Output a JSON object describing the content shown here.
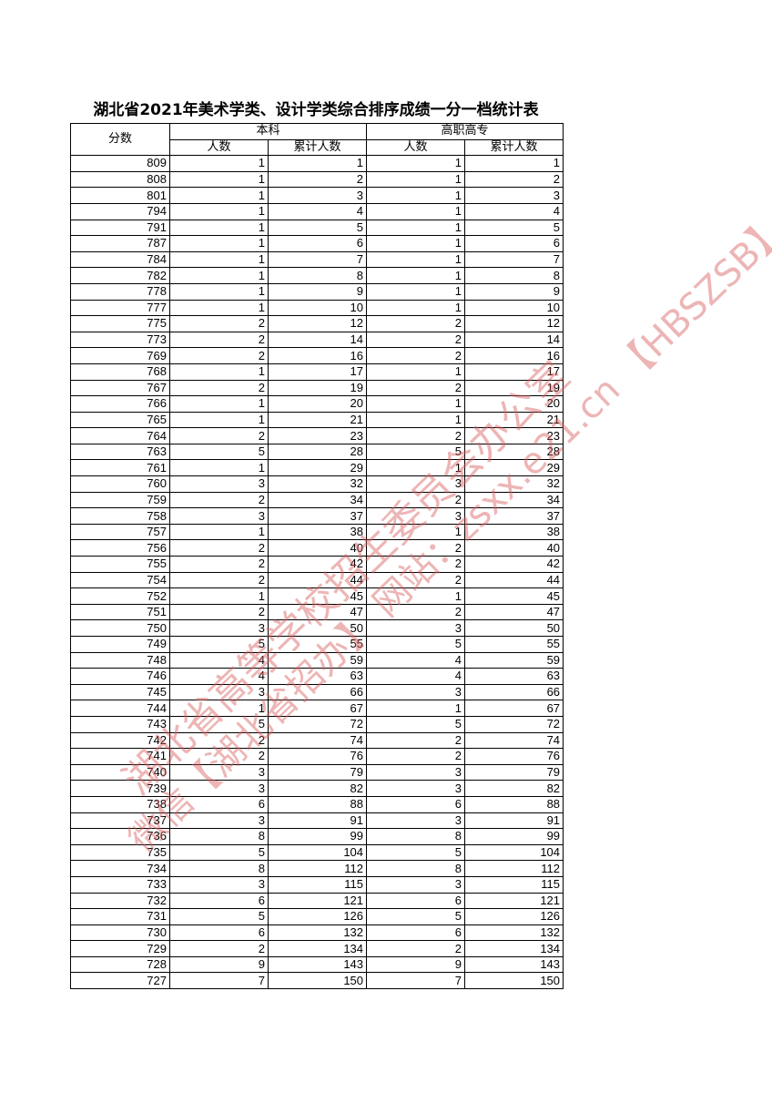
{
  "title": "湖北省2021年美术学类、设计学类综合排序成绩一分一档统计表",
  "header": {
    "score": "分数",
    "group1": "本科",
    "group2": "高职高专",
    "count": "人数",
    "cumulative": "累计人数"
  },
  "rows": [
    [
      809,
      1,
      1,
      1,
      1
    ],
    [
      808,
      1,
      2,
      1,
      2
    ],
    [
      801,
      1,
      3,
      1,
      3
    ],
    [
      794,
      1,
      4,
      1,
      4
    ],
    [
      791,
      1,
      5,
      1,
      5
    ],
    [
      787,
      1,
      6,
      1,
      6
    ],
    [
      784,
      1,
      7,
      1,
      7
    ],
    [
      782,
      1,
      8,
      1,
      8
    ],
    [
      778,
      1,
      9,
      1,
      9
    ],
    [
      777,
      1,
      10,
      1,
      10
    ],
    [
      775,
      2,
      12,
      2,
      12
    ],
    [
      773,
      2,
      14,
      2,
      14
    ],
    [
      769,
      2,
      16,
      2,
      16
    ],
    [
      768,
      1,
      17,
      1,
      17
    ],
    [
      767,
      2,
      19,
      2,
      19
    ],
    [
      766,
      1,
      20,
      1,
      20
    ],
    [
      765,
      1,
      21,
      1,
      21
    ],
    [
      764,
      2,
      23,
      2,
      23
    ],
    [
      763,
      5,
      28,
      5,
      28
    ],
    [
      761,
      1,
      29,
      1,
      29
    ],
    [
      760,
      3,
      32,
      3,
      32
    ],
    [
      759,
      2,
      34,
      2,
      34
    ],
    [
      758,
      3,
      37,
      3,
      37
    ],
    [
      757,
      1,
      38,
      1,
      38
    ],
    [
      756,
      2,
      40,
      2,
      40
    ],
    [
      755,
      2,
      42,
      2,
      42
    ],
    [
      754,
      2,
      44,
      2,
      44
    ],
    [
      752,
      1,
      45,
      1,
      45
    ],
    [
      751,
      2,
      47,
      2,
      47
    ],
    [
      750,
      3,
      50,
      3,
      50
    ],
    [
      749,
      5,
      55,
      5,
      55
    ],
    [
      748,
      4,
      59,
      4,
      59
    ],
    [
      746,
      4,
      63,
      4,
      63
    ],
    [
      745,
      3,
      66,
      3,
      66
    ],
    [
      744,
      1,
      67,
      1,
      67
    ],
    [
      743,
      5,
      72,
      5,
      72
    ],
    [
      742,
      2,
      74,
      2,
      74
    ],
    [
      741,
      2,
      76,
      2,
      76
    ],
    [
      740,
      3,
      79,
      3,
      79
    ],
    [
      739,
      3,
      82,
      3,
      82
    ],
    [
      738,
      6,
      88,
      6,
      88
    ],
    [
      737,
      3,
      91,
      3,
      91
    ],
    [
      736,
      8,
      99,
      8,
      99
    ],
    [
      735,
      5,
      104,
      5,
      104
    ],
    [
      734,
      8,
      112,
      8,
      112
    ],
    [
      733,
      3,
      115,
      3,
      115
    ],
    [
      732,
      6,
      121,
      6,
      121
    ],
    [
      731,
      5,
      126,
      5,
      126
    ],
    [
      730,
      6,
      132,
      6,
      132
    ],
    [
      729,
      2,
      134,
      2,
      134
    ],
    [
      728,
      9,
      143,
      9,
      143
    ],
    [
      727,
      7,
      150,
      7,
      150
    ]
  ],
  "watermark": {
    "line1": "湖北省高等学校招生委员会办公室",
    "line2": "微信【湖北省招办】 网站：zsxx.e21.cn 【HBSZSB】"
  }
}
